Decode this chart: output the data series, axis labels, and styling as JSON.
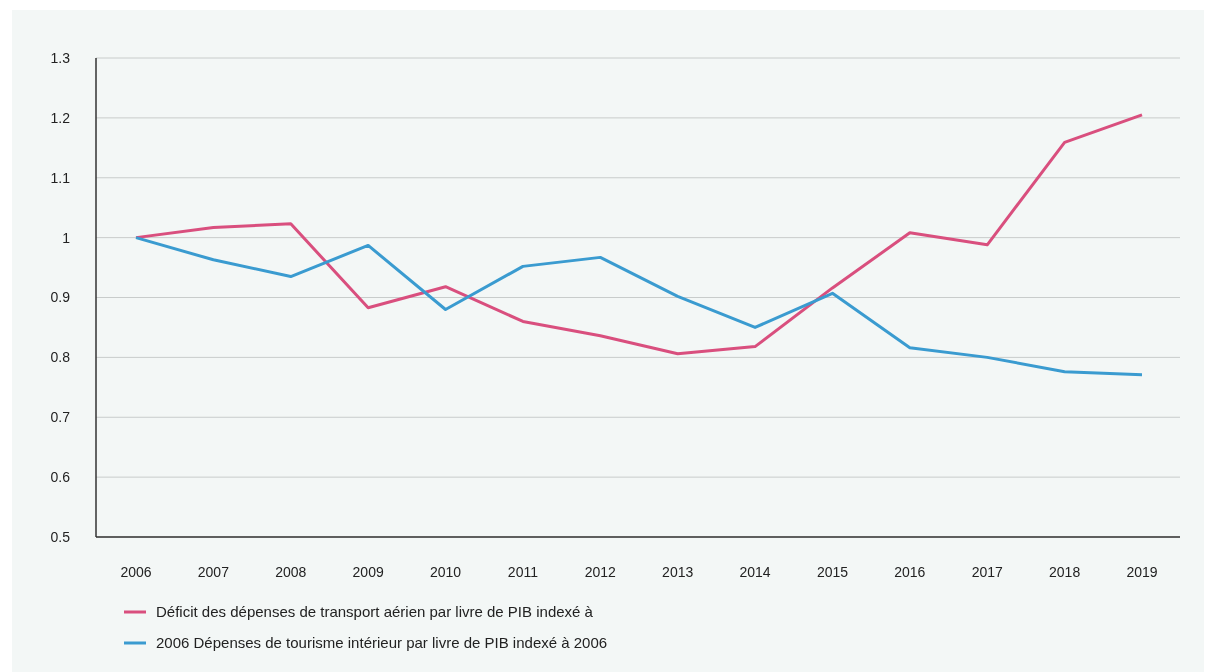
{
  "chart_data": {
    "type": "line",
    "categories": [
      "2006",
      "2007",
      "2008",
      "2009",
      "2010",
      "2011",
      "2012",
      "2013",
      "2014",
      "2015",
      "2016",
      "2017",
      "2018",
      "2019"
    ],
    "series": [
      {
        "name": "Déficit des dépenses de transport aérien par livre de PIB indexé à",
        "color": "#d94f7e",
        "values": [
          1.0,
          1.017,
          1.023,
          0.883,
          0.918,
          0.86,
          0.836,
          0.806,
          0.818,
          0.916,
          1.008,
          0.988,
          1.159,
          1.205
        ]
      },
      {
        "name": "2006 Dépenses de tourisme intérieur par livre de PIB indexé à 2006",
        "color": "#3a9bd0",
        "values": [
          1.0,
          0.963,
          0.935,
          0.987,
          0.88,
          0.952,
          0.967,
          0.902,
          0.85,
          0.907,
          0.816,
          0.8,
          0.776,
          0.771
        ]
      }
    ],
    "ylim": [
      0.5,
      1.3
    ],
    "yticks": [
      0.5,
      0.6,
      0.7,
      0.8,
      0.9,
      1,
      1.1,
      1.2,
      1.3
    ],
    "grid": "y",
    "legend": "bottom",
    "marker": "none",
    "line_style": "solid"
  }
}
